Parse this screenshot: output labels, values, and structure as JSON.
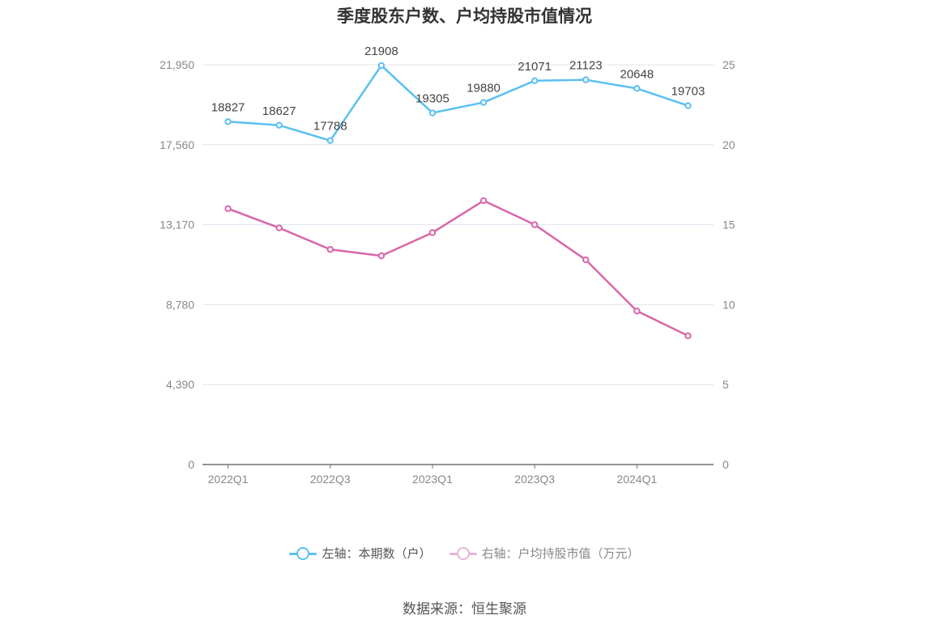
{
  "title": "季度股东户数、户均持股市值情况",
  "source": "数据来源：恒生聚源",
  "legend": [
    {
      "label": "左轴：本期数（户）",
      "color": "#5bc0f0"
    },
    {
      "label": "右轴：户均持股市值（万元）",
      "color": "#e8b4d8"
    }
  ],
  "chart_data": {
    "type": "line",
    "categories": [
      "2022Q1",
      "2022Q2",
      "2022Q3",
      "2022Q4",
      "2023Q1",
      "2023Q2",
      "2023Q3",
      "2023Q4",
      "2024Q1",
      "2024Q2"
    ],
    "x_tick_labels": [
      "2022Q1",
      "2022Q3",
      "2023Q1",
      "2023Q3",
      "2024Q1"
    ],
    "left_axis": {
      "min": 0,
      "max": 21950,
      "ticks": [
        0,
        4390,
        8780,
        13170,
        17560,
        21950
      ],
      "tick_labels": [
        "0",
        "4,390",
        "8,780",
        "13,170",
        "17,560",
        "21,950"
      ]
    },
    "right_axis": {
      "min": 0,
      "max": 25,
      "ticks": [
        0,
        5,
        10,
        15,
        20,
        25
      ],
      "tick_labels": [
        "0",
        "5",
        "10",
        "15",
        "20",
        "25"
      ]
    },
    "series": [
      {
        "name": "左轴：本期数（户）",
        "axis": "left",
        "color": "#5bc0f0",
        "values": [
          18827,
          18627,
          17788,
          21908,
          19305,
          19880,
          21071,
          21123,
          20648,
          19703
        ],
        "data_labels": [
          "18827",
          "18627",
          "17788",
          "21908",
          "19305",
          "19880",
          "21071",
          "21123",
          "20648",
          "19703"
        ]
      },
      {
        "name": "右轴：户均持股市值（万元）",
        "axis": "right",
        "color": "#d966a8",
        "values": [
          16.0,
          14.8,
          13.45,
          13.05,
          14.5,
          16.5,
          15.0,
          12.8,
          9.6,
          8.05
        ]
      }
    ],
    "grid": true,
    "legend_position": "bottom"
  }
}
